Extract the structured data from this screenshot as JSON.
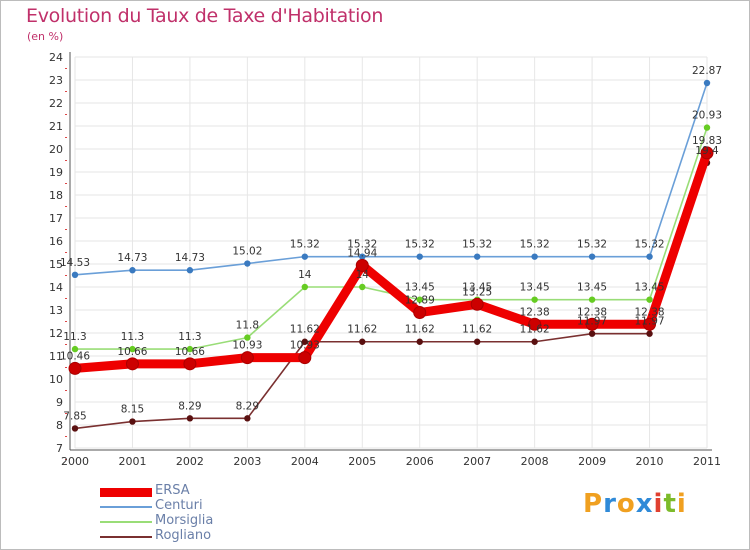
{
  "header": {
    "title": "Evolution du Taux de Taxe d'Habitation",
    "subtitle": "(en %)"
  },
  "brand": {
    "letters": [
      "P",
      "r",
      "o",
      "x",
      "i",
      "t",
      "i"
    ],
    "colors": [
      "#f0a020",
      "#2f8ad8",
      "#f0a020",
      "#2f8ad8",
      "#e04030",
      "#7dbb2a",
      "#f0a020"
    ]
  },
  "chart_data": {
    "type": "line",
    "title": "Evolution du Taux de Taxe d'Habitation",
    "ylabel": "(en %)",
    "xlabel": "",
    "ylim": [
      7,
      24
    ],
    "yticks": [
      "7",
      "8",
      "9",
      "10",
      "11",
      "12",
      "13",
      "14",
      "15",
      "16",
      "17",
      "18",
      "19",
      "20",
      "21",
      "22",
      "23",
      "24"
    ],
    "categories": [
      "2000",
      "2001",
      "2002",
      "2003",
      "2004",
      "2005",
      "2006",
      "2007",
      "2008",
      "2009",
      "2010",
      "2011"
    ],
    "legend_position": "bottom-left",
    "series": [
      {
        "name": "ERSA",
        "color": "#ee0000",
        "marker": "#cc0000",
        "values": [
          10.46,
          10.66,
          10.66,
          10.93,
          10.93,
          14.94,
          12.89,
          13.25,
          12.38,
          12.38,
          12.38,
          19.83
        ],
        "labels": [
          "10.46",
          "10.66",
          "10.66",
          "10.93",
          "10.93",
          "14.94",
          "12.89",
          "13.25",
          "12.38",
          "12.38",
          "12.38",
          "19.83"
        ]
      },
      {
        "name": "Centuri",
        "color": "#6a9fd8",
        "marker": "#3a7ac0",
        "values": [
          14.53,
          14.73,
          14.73,
          15.02,
          15.32,
          15.32,
          15.32,
          15.32,
          15.32,
          15.32,
          15.32,
          22.87
        ],
        "labels": [
          "14.53",
          "14.73",
          "14.73",
          "15.02",
          "15.32",
          "15.32",
          "15.32",
          "15.32",
          "15.32",
          "15.32",
          "15.32",
          "22.87"
        ]
      },
      {
        "name": "Morsiglia",
        "color": "#99dd77",
        "marker": "#66cc22",
        "values": [
          11.3,
          11.3,
          11.3,
          11.8,
          14,
          14,
          13.45,
          13.45,
          13.45,
          13.45,
          13.45,
          20.93
        ],
        "labels": [
          "11.3",
          "11.3",
          "11.3",
          "11.8",
          "14",
          "14",
          "13.45",
          "13.45",
          "13.45",
          "13.45",
          "13.45",
          "20.93"
        ]
      },
      {
        "name": "Rogliano",
        "color": "#7a3030",
        "marker": "#5a1010",
        "values": [
          7.85,
          8.15,
          8.29,
          8.29,
          11.62,
          11.62,
          11.62,
          11.62,
          11.62,
          11.97,
          11.97,
          19.4
        ],
        "labels": [
          "7.85",
          "8.15",
          "8.29",
          "8.29",
          "11.62",
          "11.62",
          "11.62",
          "11.62",
          "11.62",
          "11.97",
          "11.97",
          "19.4"
        ]
      }
    ]
  }
}
